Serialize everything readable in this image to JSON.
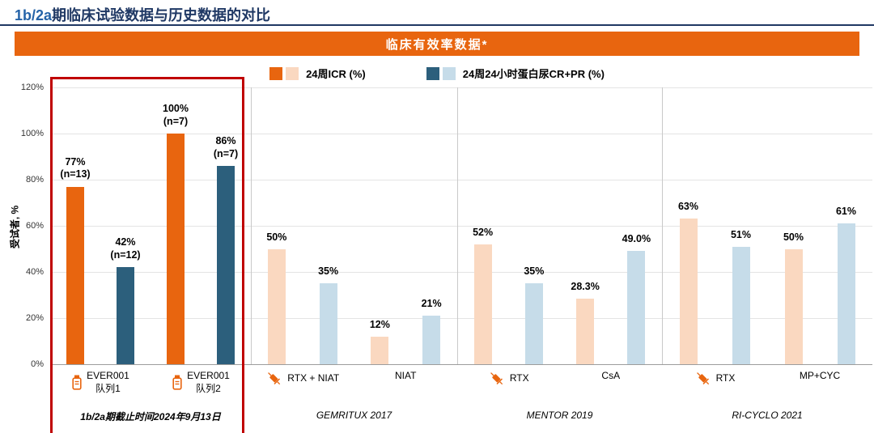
{
  "title": {
    "accent": "1b/2a",
    "rest": "期临床试验数据与历史数据的对比"
  },
  "banner": {
    "text": "临床有效率数据*"
  },
  "legend": {
    "items": [
      {
        "label": "24周ICR (%)",
        "swatches": [
          "orange",
          "orange_light"
        ]
      },
      {
        "label": "24周24小时蛋白尿CR+PR (%)",
        "swatches": [
          "blue",
          "blue_light"
        ]
      }
    ]
  },
  "palette": {
    "orange": "#E8650F",
    "orange_light": "#FAD8C0",
    "blue": "#2C5F7C",
    "blue_light": "#C6DCE9",
    "highlight_box": "#C00000",
    "banner_bg": "#E8650F",
    "title_accent": "#2563A8",
    "underline": "#1F3864"
  },
  "chart_data": {
    "type": "bar",
    "title": "临床有效率数据*",
    "ylabel": "受试者, %",
    "ylim": [
      0,
      120
    ],
    "ytick_step": 20,
    "ytick_labels": [
      "0%",
      "20%",
      "40%",
      "60%",
      "80%",
      "100%",
      "120%"
    ],
    "grid": true,
    "legend_position": "top",
    "series_legend": [
      "24周ICR (%)",
      "24周24小时蛋白尿CR+PR (%)"
    ],
    "groups": [
      {
        "name": "EVER001 1b/2a",
        "footer": "1b/2a期截止时间2024年9月13日",
        "highlighted": true,
        "bars": [
          {
            "value": 77,
            "label": "77%",
            "sublabel": "(n=13)",
            "color": "orange"
          },
          {
            "value": 42,
            "label": "42%",
            "sublabel": "(n=12)",
            "color": "blue"
          },
          {
            "value": 100,
            "label": "100%",
            "sublabel": "(n=7)",
            "color": "orange"
          },
          {
            "value": 86,
            "label": "86%",
            "sublabel": "(n=7)",
            "color": "blue"
          }
        ],
        "xlabels": [
          {
            "icon": "injector-icon",
            "line1": "EVER001",
            "line2": "队列1"
          },
          {
            "icon": "injector-icon",
            "line1": "EVER001",
            "line2": "队列2"
          }
        ]
      },
      {
        "name": "GEMRITUX 2017",
        "footer": "GEMRITUX 2017",
        "highlighted": false,
        "bars": [
          {
            "value": 50,
            "label": "50%",
            "color": "orange_light"
          },
          {
            "value": 35,
            "label": "35%",
            "color": "blue_light"
          },
          {
            "value": 12,
            "label": "12%",
            "color": "orange_light"
          },
          {
            "value": 21,
            "label": "21%",
            "color": "blue_light"
          }
        ],
        "xlabels": [
          {
            "icon": "syringe-icon",
            "line1": "RTX + NIAT"
          },
          {
            "line1": "NIAT"
          }
        ]
      },
      {
        "name": "MENTOR 2019",
        "footer": "MENTOR 2019",
        "highlighted": false,
        "bars": [
          {
            "value": 52,
            "label": "52%",
            "color": "orange_light"
          },
          {
            "value": 35,
            "label": "35%",
            "color": "blue_light"
          },
          {
            "value": 28.3,
            "label": "28.3%",
            "color": "orange_light"
          },
          {
            "value": 49,
            "label": "49.0%",
            "color": "blue_light"
          }
        ],
        "xlabels": [
          {
            "icon": "syringe-icon",
            "line1": "RTX"
          },
          {
            "line1": "CsA"
          }
        ]
      },
      {
        "name": "RI-CYCLO 2021",
        "footer": "RI-CYCLO 2021",
        "highlighted": false,
        "bars": [
          {
            "value": 63,
            "label": "63%",
            "color": "orange_light"
          },
          {
            "value": 51,
            "label": "51%",
            "color": "blue_light"
          },
          {
            "value": 50,
            "label": "50%",
            "color": "orange_light"
          },
          {
            "value": 61,
            "label": "61%",
            "color": "blue_light"
          }
        ],
        "xlabels": [
          {
            "icon": "syringe-icon",
            "line1": "RTX"
          },
          {
            "line1": "MP+CYC"
          }
        ]
      }
    ]
  }
}
